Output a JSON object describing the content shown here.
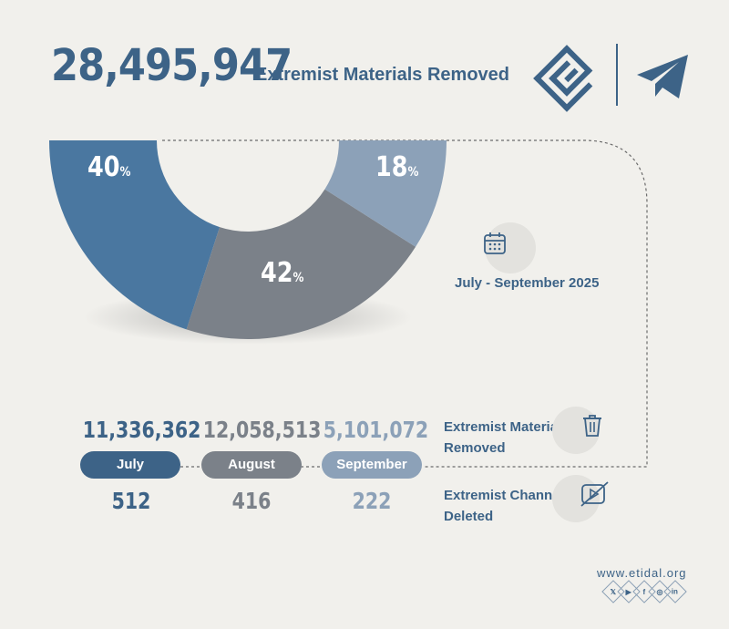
{
  "header": {
    "total": "28,495,947",
    "label": "Extremist Materials Removed"
  },
  "chart_data": {
    "type": "pie",
    "categories": [
      "July",
      "August",
      "September"
    ],
    "values": [
      40,
      42,
      18
    ],
    "value_labels": [
      "40",
      "42",
      "18"
    ],
    "unit": "%",
    "colors": [
      "#4a77a0",
      "#7b8189",
      "#8ca1b8"
    ]
  },
  "period": {
    "label": "July - September 2025",
    "icon": "calendar-icon"
  },
  "months": [
    {
      "name": "July",
      "materials": "11,336,362",
      "channels": "512",
      "color": "#3d6387"
    },
    {
      "name": "August",
      "materials": "12,058,513",
      "channels": "416",
      "color": "#7b8189"
    },
    {
      "name": "September",
      "materials": "5,101,072",
      "channels": "222",
      "color": "#8ca1b8"
    }
  ],
  "stats": {
    "materials_line1": "Extremist Materials",
    "materials_line2": "Removed",
    "materials_icon": "trash-icon",
    "channels_line1": "Extremist Channels",
    "channels_line2": "Deleted",
    "channels_icon": "channel-deleted-icon"
  },
  "footer": {
    "website": "www.etidal.org",
    "social": [
      "x-icon",
      "youtube-icon",
      "facebook-icon",
      "instagram-icon",
      "linkedin-icon"
    ]
  }
}
